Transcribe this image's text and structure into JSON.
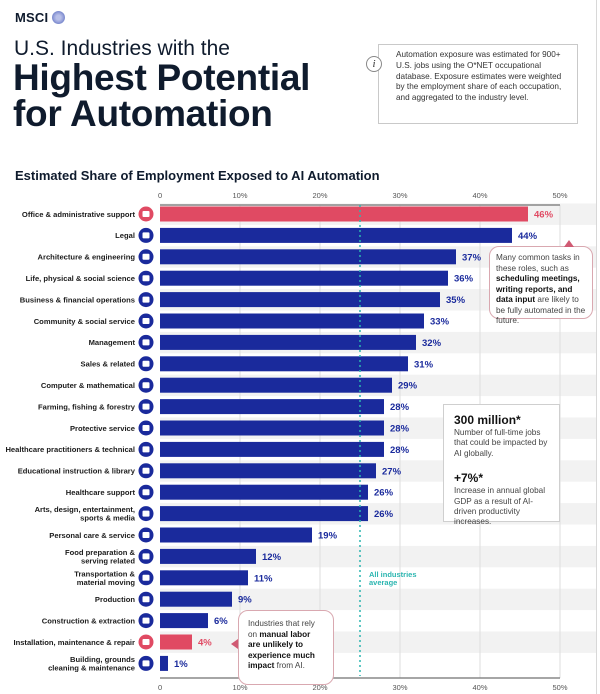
{
  "brand": {
    "name": "MSCI",
    "logo_icon": "globe-icon"
  },
  "header": {
    "title_line1": "U.S. Industries with the",
    "title_line2": "Highest Potential",
    "title_line3": "for Automation"
  },
  "info_box": {
    "icon": "info-icon",
    "icon_glyph": "i",
    "text": "Automation exposure was estimated for 900+ U.S. jobs using the O*NET occupational database. Exposure estimates were weighted by the employment share of each occupation, and aggregated to the industry level."
  },
  "callouts": {
    "top": {
      "plain1": "Many common tasks in these roles, such as ",
      "bold": "scheduling meetings, writing reports, and data input",
      "plain2": " are likely to be fully automated in the future."
    },
    "bottom": {
      "plain1": "Industries that rely on ",
      "bold": "manual labor are unlikely to experience much impact",
      "plain2": " from AI."
    }
  },
  "stats": [
    {
      "value": "300 million*",
      "desc": "Number of full-time jobs that could be impacted by AI globally."
    },
    {
      "value": "+7%*",
      "desc": "Increase in annual global GDP as a result of AI-driven productivity increases."
    }
  ],
  "colors": {
    "bar_default": "#1a2a9c",
    "bar_highlight": "#e04a63",
    "label_default": "#1a2a9c",
    "label_highlight": "#e04a63",
    "average_line": "#2bb5b0",
    "axis": "#888888",
    "grid": "#dddddd",
    "row_band": "#f2f2f2"
  },
  "chart_data": {
    "type": "bar",
    "orientation": "horizontal",
    "title": "Estimated Share of Employment Exposed to AI Automation",
    "xlabel": "",
    "ylabel": "",
    "xlim": [
      0,
      50
    ],
    "x_ticks": [
      "0",
      "10%",
      "20%",
      "30%",
      "40%",
      "50%"
    ],
    "x_tick_values": [
      0,
      10,
      20,
      30,
      40,
      50
    ],
    "grid": true,
    "average": {
      "value": 25,
      "label_line1": "All industries",
      "label_line2": "average"
    },
    "categories": [
      {
        "label": [
          "Office & administrative support"
        ],
        "value": 46,
        "icon": "building-icon",
        "highlight": true
      },
      {
        "label": [
          "Legal"
        ],
        "value": 44,
        "icon": "gavel-icon",
        "highlight": false
      },
      {
        "label": [
          "Architecture & engineering"
        ],
        "value": 37,
        "icon": "blueprint-icon",
        "highlight": false
      },
      {
        "label": [
          "Life, physical & social science"
        ],
        "value": 36,
        "icon": "people-group-icon",
        "highlight": false
      },
      {
        "label": [
          "Business & financial operations"
        ],
        "value": 35,
        "icon": "handshake-icon",
        "highlight": false
      },
      {
        "label": [
          "Community & social service"
        ],
        "value": 33,
        "icon": "person-badge-icon",
        "highlight": false
      },
      {
        "label": [
          "Management"
        ],
        "value": 32,
        "icon": "briefcase-icon",
        "highlight": false
      },
      {
        "label": [
          "Sales & related"
        ],
        "value": 31,
        "icon": "chart-up-icon",
        "highlight": false
      },
      {
        "label": [
          "Computer & mathematical"
        ],
        "value": 29,
        "icon": "computer-gear-icon",
        "highlight": false
      },
      {
        "label": [
          "Farming, fishing & forestry"
        ],
        "value": 28,
        "icon": "tree-icon",
        "highlight": false
      },
      {
        "label": [
          "Protective service"
        ],
        "value": 28,
        "icon": "lock-icon",
        "highlight": false
      },
      {
        "label": [
          "Healthcare practitioners & technical"
        ],
        "value": 28,
        "icon": "stethoscope-icon",
        "highlight": false
      },
      {
        "label": [
          "Educational instruction & library"
        ],
        "value": 27,
        "icon": "graduation-cap-icon",
        "highlight": false
      },
      {
        "label": [
          "Healthcare support"
        ],
        "value": 26,
        "icon": "heart-pulse-icon",
        "highlight": false
      },
      {
        "label": [
          "Arts, design, entertainment,",
          "sports & media"
        ],
        "value": 26,
        "icon": "gamepad-icon",
        "highlight": false
      },
      {
        "label": [
          "Personal care & service"
        ],
        "value": 19,
        "icon": "cart-icon",
        "highlight": false
      },
      {
        "label": [
          "Food preparation &",
          "serving related"
        ],
        "value": 12,
        "icon": "food-icon",
        "highlight": false
      },
      {
        "label": [
          "Transportation &",
          "material moving"
        ],
        "value": 11,
        "icon": "bus-icon",
        "highlight": false
      },
      {
        "label": [
          "Production"
        ],
        "value": 9,
        "icon": "factory-icon",
        "highlight": false
      },
      {
        "label": [
          "Construction & extraction"
        ],
        "value": 6,
        "icon": "excavator-icon",
        "highlight": false
      },
      {
        "label": [
          "Installation, maintenance & repair"
        ],
        "value": 4,
        "icon": "wrench-icon",
        "highlight": true
      },
      {
        "label": [
          "Building, grounds",
          "cleaning & maintenance"
        ],
        "value": 1,
        "icon": "thumbs-up-icon",
        "highlight": false
      }
    ]
  }
}
